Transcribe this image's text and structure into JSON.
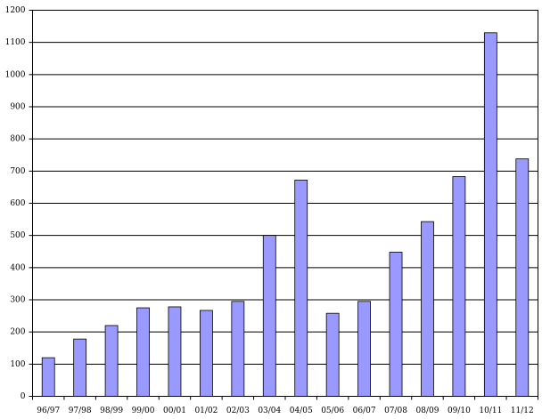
{
  "chart_data": {
    "type": "bar",
    "categories": [
      "96/97",
      "97/98",
      "98/99",
      "99/00",
      "00/01",
      "01/02",
      "02/03",
      "03/04",
      "04/05",
      "05/06",
      "06/07",
      "07/08",
      "08/09",
      "09/10",
      "10/11",
      "11/12"
    ],
    "values": [
      120,
      178,
      220,
      275,
      278,
      267,
      295,
      500,
      672,
      258,
      295,
      448,
      543,
      683,
      1130,
      738
    ],
    "color": "#9999ff",
    "ylim": [
      0,
      1200
    ],
    "yticks": [
      0,
      100,
      200,
      300,
      400,
      500,
      600,
      700,
      800,
      900,
      1000,
      1100,
      1200
    ],
    "grid": true
  }
}
